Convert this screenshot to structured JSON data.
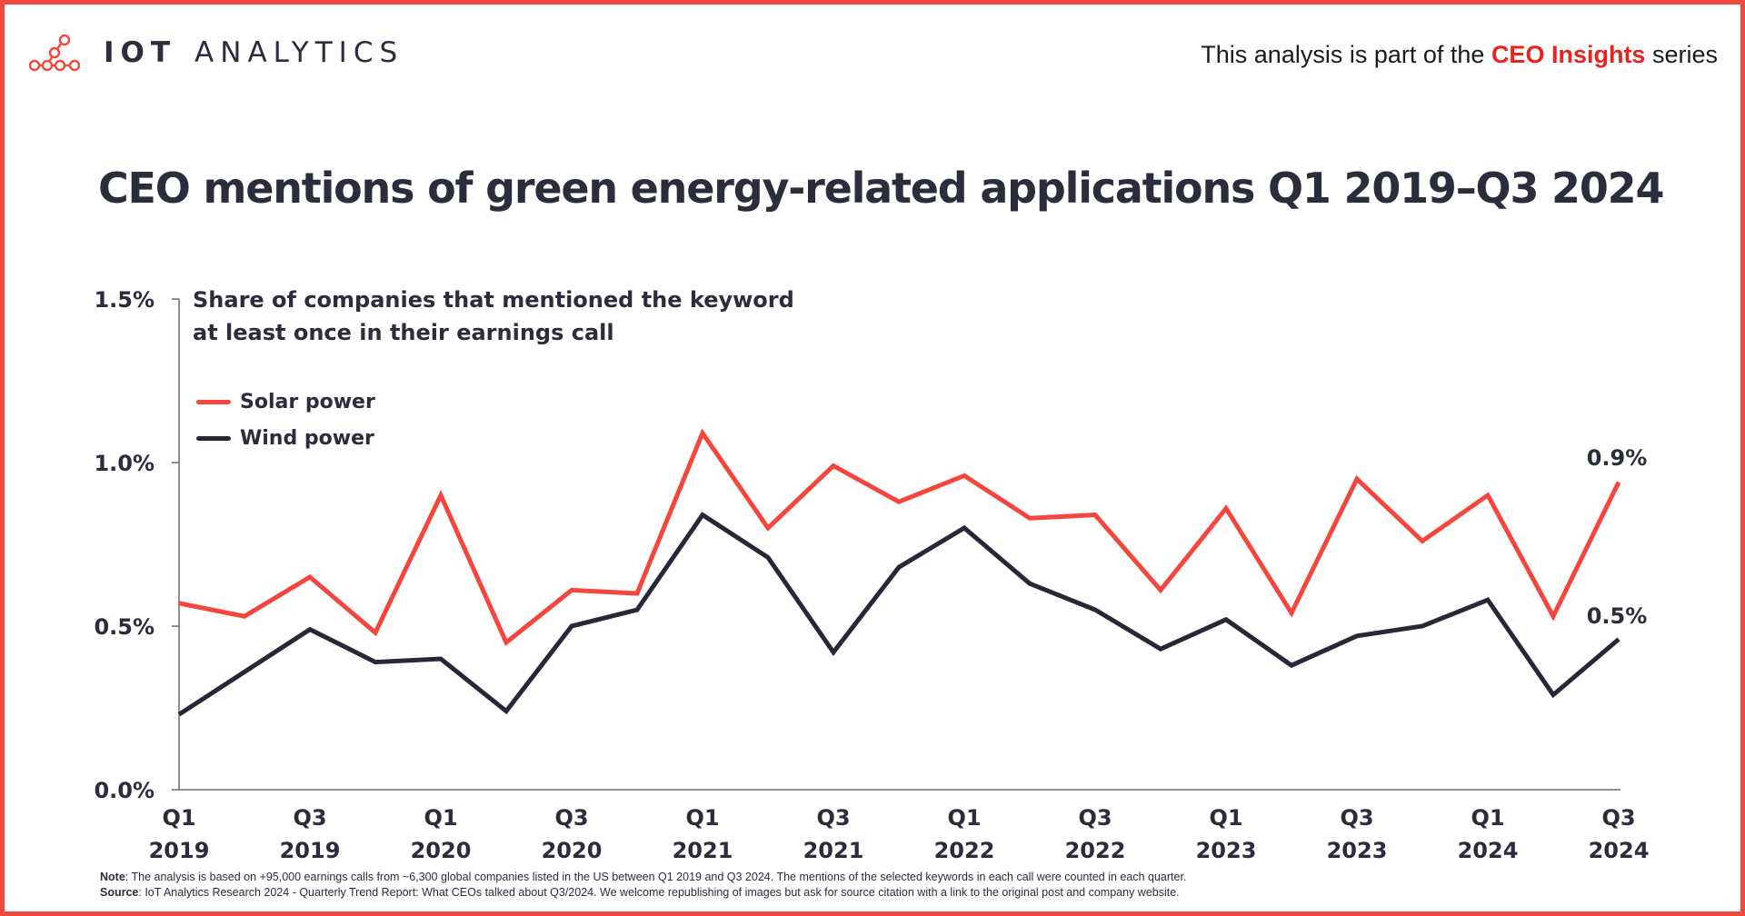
{
  "brand": {
    "logo_iot": "IOT",
    "logo_analytics": "ANALYTICS",
    "logo_color": "#f04a3e"
  },
  "header": {
    "series_prefix": "This analysis is part of the",
    "series_name": "CEO Insights",
    "series_suffix": "series"
  },
  "chart_data": {
    "type": "line",
    "title": "CEO mentions of green energy-related applications Q1 2019–Q3 2024",
    "subtitle_line1": "Share of companies that mentioned the keyword",
    "subtitle_line2": "at least once in their earnings call",
    "categories": [
      "Q1 2019",
      "Q2 2019",
      "Q3 2019",
      "Q4 2019",
      "Q1 2020",
      "Q2 2020",
      "Q3 2020",
      "Q4 2020",
      "Q1 2021",
      "Q2 2021",
      "Q3 2021",
      "Q4 2021",
      "Q1 2022",
      "Q2 2022",
      "Q3 2022",
      "Q4 2022",
      "Q1 2023",
      "Q2 2023",
      "Q3 2023",
      "Q4 2023",
      "Q1 2024",
      "Q2 2024",
      "Q3 2024"
    ],
    "x_tick_labels": [
      {
        "q": "Q1",
        "year": "2019"
      },
      {
        "q": "Q3",
        "year": "2019"
      },
      {
        "q": "Q1",
        "year": "2020"
      },
      {
        "q": "Q3",
        "year": "2020"
      },
      {
        "q": "Q1",
        "year": "2021"
      },
      {
        "q": "Q3",
        "year": "2021"
      },
      {
        "q": "Q1",
        "year": "2022"
      },
      {
        "q": "Q3",
        "year": "2022"
      },
      {
        "q": "Q1",
        "year": "2023"
      },
      {
        "q": "Q3",
        "year": "2023"
      },
      {
        "q": "Q1",
        "year": "2024"
      },
      {
        "q": "Q3",
        "year": "2024"
      }
    ],
    "y_ticks": [
      {
        "value": 0.0,
        "label": "0.0%"
      },
      {
        "value": 0.5,
        "label": "0.5%"
      },
      {
        "value": 1.0,
        "label": "1.0%"
      },
      {
        "value": 1.5,
        "label": "1.5%"
      }
    ],
    "ylim": [
      0,
      1.5
    ],
    "ylabel_unit": "%",
    "grid": false,
    "legend_position": "top-left",
    "series": [
      {
        "name": "Solar power",
        "color": "#f4463d",
        "values": [
          0.57,
          0.53,
          0.65,
          0.48,
          0.9,
          0.45,
          0.61,
          0.6,
          1.09,
          0.8,
          0.99,
          0.88,
          0.96,
          0.83,
          0.84,
          0.61,
          0.86,
          0.54,
          0.95,
          0.76,
          0.9,
          0.53,
          0.94
        ],
        "end_label": "0.9%"
      },
      {
        "name": "Wind power",
        "color": "#262837",
        "values": [
          0.23,
          0.36,
          0.49,
          0.39,
          0.4,
          0.24,
          0.5,
          0.55,
          0.84,
          0.71,
          0.42,
          0.68,
          0.8,
          0.63,
          0.55,
          0.43,
          0.52,
          0.38,
          0.47,
          0.5,
          0.58,
          0.29,
          0.46
        ],
        "end_label": "0.5%"
      }
    ]
  },
  "footer": {
    "note_key": "Note",
    "note_text": ": The analysis is based on +95,000 earnings calls from ~6,300 global companies listed in the US between Q1 2019 and Q3 2024. The mentions of the selected keywords in each call were counted in each quarter.",
    "source_key": "Source",
    "source_text": ": IoT Analytics Research 2024 - Quarterly Trend Report: What CEOs talked about Q3/2024. We welcome republishing of images but ask for source citation with a link to the original post and company website."
  }
}
